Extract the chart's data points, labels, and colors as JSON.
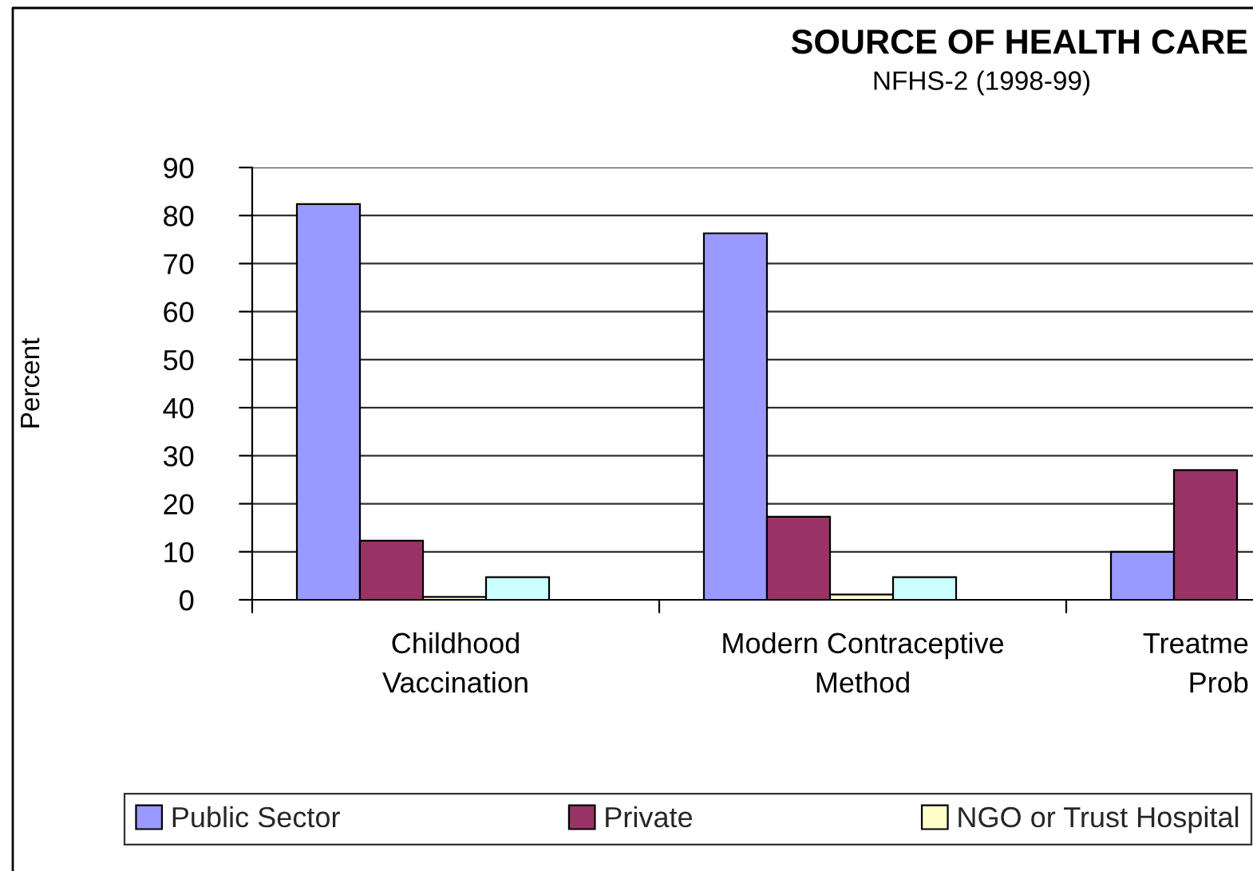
{
  "chart_data": {
    "type": "bar",
    "title": "SOURCE OF HEALTH CARE",
    "subtitle": "NFHS-2 (1998-99)",
    "ylabel": "Percent",
    "categories": [
      "Childhood\nVaccination",
      "Modern Contraceptive\nMethod",
      "Treatme\nProb"
    ],
    "series": [
      {
        "name": "Public Sector",
        "color": "#9999ff",
        "values": [
          82.4,
          76.3,
          10.0
        ]
      },
      {
        "name": "Private",
        "color": "#993366",
        "values": [
          12.3,
          17.3,
          27.0
        ]
      },
      {
        "name": "NGO or Trust Hospital",
        "color": "#ffffcc",
        "values": [
          0.6,
          1.1,
          null
        ]
      },
      {
        "color": "#ccffff",
        "values": [
          4.7,
          4.7,
          null
        ]
      }
    ],
    "ylim": [
      0,
      90
    ],
    "yticks": [
      0,
      10,
      20,
      30,
      40,
      50,
      60,
      70,
      80,
      90
    ],
    "grid": "y",
    "legend": "bottom"
  }
}
